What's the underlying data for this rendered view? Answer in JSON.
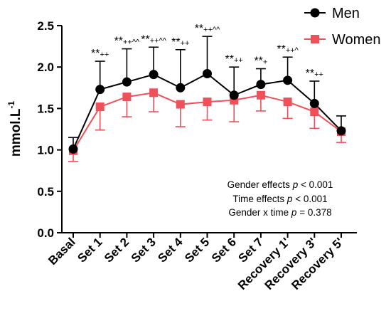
{
  "chart_data": {
    "type": "line",
    "categories": [
      "Basal",
      "Set 1",
      "Set 2",
      "Set 3",
      "Set 4",
      "Set 5",
      "Set 6",
      "Set 7",
      "Recovery 1'",
      "Recovery 3'",
      "Recovery 5'"
    ],
    "ylabel": "mmol.L-1",
    "ylabel_base": "mmol.L",
    "ylabel_sup": "-1",
    "ylim": [
      0,
      2.5
    ],
    "yticks": [
      "0.0",
      "0.5",
      "1.0",
      "1.5",
      "2.0",
      "2.5"
    ],
    "legend_position": "top-right",
    "grid": false,
    "series": [
      {
        "name": "Men",
        "marker": "circle",
        "color": "#000000",
        "values": [
          1.01,
          1.73,
          1.82,
          1.91,
          1.75,
          1.92,
          1.66,
          1.79,
          1.84,
          1.56,
          1.23
        ],
        "error_up": [
          0.14,
          0.34,
          0.4,
          0.33,
          0.46,
          0.45,
          0.34,
          0.19,
          0.28,
          0.27,
          0.18
        ]
      },
      {
        "name": "Women",
        "marker": "square",
        "color": "#f0505a",
        "values": [
          0.99,
          1.52,
          1.64,
          1.69,
          1.55,
          1.58,
          1.6,
          1.66,
          1.58,
          1.46,
          1.22
        ],
        "error_down": [
          0.13,
          0.28,
          0.24,
          0.23,
          0.27,
          0.22,
          0.26,
          0.19,
          0.2,
          0.2,
          0.13
        ]
      }
    ],
    "significance": [
      {
        "category": "Set 1",
        "main": "**",
        "sub": "++"
      },
      {
        "category": "Set 2",
        "main": "**",
        "sub": "++^^"
      },
      {
        "category": "Set 3",
        "main": "**",
        "sub": "++^^"
      },
      {
        "category": "Set 4",
        "main": "**",
        "sub": "++"
      },
      {
        "category": "Set 5",
        "main": "**",
        "sub": "++^^"
      },
      {
        "category": "Set 6",
        "main": "**",
        "sub": "++"
      },
      {
        "category": "Set 7",
        "main": "**",
        "sub": "+"
      },
      {
        "category": "Recovery 1'",
        "main": "**",
        "sub": "++^"
      },
      {
        "category": "Recovery 3'",
        "main": "**",
        "sub": "++"
      }
    ],
    "annotations": [
      {
        "label": "Gender effects",
        "italic": "p",
        "value": "< 0.001"
      },
      {
        "label": "Time effects",
        "italic": "p",
        "value": "< 0.001"
      },
      {
        "label": "Gender x time",
        "italic": "p",
        "value": "= 0.378"
      }
    ]
  }
}
